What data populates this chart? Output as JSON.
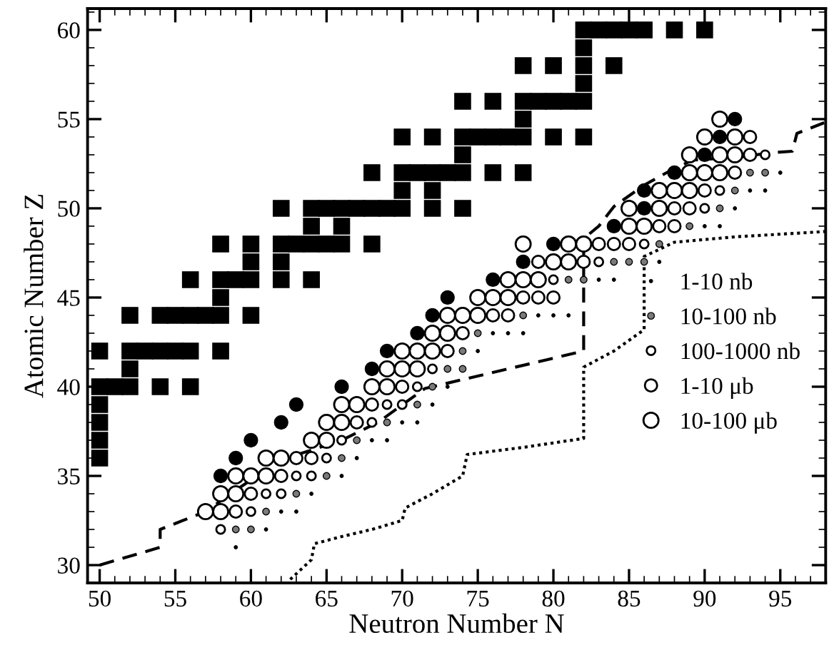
{
  "chart_data": {
    "type": "scatter",
    "xlabel": "Neutron Number N",
    "ylabel": "Atomic Number Z",
    "xlim": [
      49.2,
      98
    ],
    "ylim": [
      29,
      61.2
    ],
    "xticks": [
      50,
      55,
      60,
      65,
      70,
      75,
      80,
      85,
      90,
      95
    ],
    "yticks": [
      30,
      35,
      40,
      45,
      50,
      55,
      60
    ],
    "grid": false,
    "legend": "right",
    "series": [
      {
        "marker": "square",
        "color": "#000000",
        "x": [
          50,
          50,
          50,
          50,
          50,
          51,
          52,
          54,
          56,
          52,
          50,
          52,
          53,
          54,
          55,
          56,
          58,
          52,
          54,
          55,
          56,
          57,
          58,
          60,
          58,
          56,
          58,
          59,
          60,
          62,
          64,
          60,
          62,
          58,
          60,
          62,
          63,
          64,
          65,
          66,
          68,
          64,
          66,
          62,
          64,
          65,
          66,
          67,
          68,
          69,
          70,
          72,
          74,
          70,
          72,
          68,
          70,
          71,
          72,
          73,
          74,
          76,
          78,
          74,
          70,
          72,
          74,
          75,
          76,
          77,
          78,
          80,
          82,
          78,
          74,
          76,
          78,
          79,
          80,
          81,
          82,
          82,
          78,
          80,
          82,
          84,
          82,
          82,
          83,
          84,
          85,
          86,
          88,
          90
        ],
        "values": [
          36,
          37,
          38,
          39,
          40,
          40,
          40,
          40,
          40,
          41,
          42,
          42,
          42,
          42,
          42,
          42,
          42,
          44,
          44,
          44,
          44,
          44,
          44,
          44,
          45,
          46,
          46,
          46,
          46,
          46,
          46,
          47,
          47,
          48,
          48,
          48,
          48,
          48,
          48,
          48,
          48,
          49,
          49,
          50,
          50,
          50,
          50,
          50,
          50,
          50,
          50,
          50,
          50,
          51,
          51,
          52,
          52,
          52,
          52,
          52,
          52,
          52,
          52,
          53,
          54,
          54,
          54,
          54,
          54,
          54,
          54,
          54,
          54,
          55,
          56,
          56,
          56,
          56,
          56,
          56,
          56,
          57,
          58,
          58,
          58,
          58,
          59,
          60,
          60,
          60,
          60,
          60,
          60,
          60
        ]
      },
      {
        "marker": "circle",
        "color": "#000000",
        "x": [
          58,
          59,
          60,
          62,
          63,
          66,
          68,
          69,
          71,
          72,
          73,
          76,
          78,
          80,
          84,
          86,
          86,
          88,
          90,
          91,
          92
        ],
        "values": [
          35,
          36,
          37,
          38,
          39,
          40,
          41,
          42,
          43,
          44,
          45,
          46,
          47,
          48,
          49,
          50,
          51,
          52,
          53,
          54,
          55
        ]
      },
      {
        "marker": "circle",
        "name": "1-10 nb",
        "color": "#000000",
        "x": [
          59,
          61,
          62,
          63,
          64,
          66,
          67,
          68,
          69,
          70,
          71,
          72,
          73,
          75,
          76,
          77,
          78,
          79,
          80,
          81,
          83,
          84,
          87,
          90,
          91,
          92,
          93,
          94,
          95
        ],
        "values": [
          31,
          32,
          33,
          33,
          34,
          35,
          36,
          37,
          37,
          38,
          38,
          39,
          40,
          42,
          43,
          43,
          43,
          44,
          44,
          44,
          46,
          46,
          47,
          49,
          49,
          50,
          51,
          51,
          52
        ]
      },
      {
        "marker": "circle",
        "name": "10-100 nb",
        "color": "#7a7a7a",
        "x": [
          59,
          60,
          61,
          63,
          65,
          66,
          67,
          69,
          71,
          72,
          73,
          74,
          74,
          75,
          78,
          81,
          82,
          84,
          85,
          86,
          87,
          89,
          91,
          92,
          93,
          94
        ],
        "values": [
          32,
          32,
          33,
          34,
          35,
          36,
          37,
          38,
          39,
          40,
          41,
          41,
          42,
          43,
          44,
          46,
          46,
          47,
          47,
          47,
          48,
          49,
          50,
          51,
          52,
          52
        ]
      },
      {
        "marker": "circle",
        "name": "100-1000 nb",
        "color": "#ffffff",
        "x": [
          58,
          60,
          61,
          62,
          63,
          64,
          65,
          66,
          68,
          69,
          70,
          71,
          72,
          80,
          83,
          86,
          90,
          91,
          94
        ],
        "values": [
          32,
          33,
          34,
          34,
          35,
          35,
          36,
          37,
          38,
          39,
          39,
          40,
          41,
          46,
          47,
          48,
          50,
          51,
          53
        ]
      },
      {
        "marker": "circle",
        "name": "1-10 μb",
        "color": "#ffffff",
        "x": [
          59,
          60,
          62,
          63,
          64,
          67,
          68,
          70,
          73,
          74,
          76,
          77,
          78,
          79,
          80,
          79,
          82,
          83,
          84,
          85,
          87,
          88,
          88,
          89,
          90,
          92,
          93,
          93
        ],
        "values": [
          33,
          34,
          35,
          36,
          36,
          38,
          39,
          40,
          42,
          43,
          44,
          44,
          45,
          45,
          45,
          47,
          47,
          48,
          48,
          48,
          49,
          49,
          50,
          50,
          51,
          52,
          53,
          54
        ]
      },
      {
        "marker": "circle",
        "name": "10-100 μb",
        "color": "#ffffff",
        "x": [
          57,
          58,
          58,
          59,
          59,
          60,
          61,
          61,
          62,
          64,
          65,
          65,
          66,
          66,
          67,
          68,
          69,
          69,
          70,
          71,
          70,
          71,
          72,
          72,
          73,
          73,
          74,
          75,
          75,
          76,
          77,
          77,
          78,
          79,
          80,
          81,
          78,
          81,
          82,
          85,
          86,
          85,
          87,
          87,
          88,
          89,
          89,
          90,
          91,
          89,
          91,
          92,
          90,
          92,
          91
        ],
        "values": [
          33,
          33,
          34,
          34,
          35,
          35,
          35,
          36,
          36,
          37,
          37,
          38,
          38,
          39,
          39,
          40,
          40,
          41,
          41,
          41,
          42,
          42,
          42,
          43,
          43,
          44,
          44,
          44,
          45,
          45,
          45,
          46,
          46,
          46,
          47,
          47,
          48,
          48,
          48,
          49,
          49,
          50,
          50,
          51,
          51,
          51,
          52,
          52,
          52,
          53,
          53,
          53,
          54,
          54,
          55
        ]
      },
      {
        "type": "line",
        "marker": "none",
        "line_style": "dashed",
        "color": "#000000",
        "x": [
          50,
          54,
          54,
          57,
          59,
          62,
          66,
          68.4,
          71.5,
          76,
          82,
          82,
          83,
          84,
          86,
          87.7,
          89.2,
          92.6,
          94.2,
          95.8,
          96.1,
          97.9
        ],
        "values": [
          30,
          31,
          32,
          33,
          34.2,
          35.9,
          37,
          38,
          39.9,
          40.8,
          42,
          48.3,
          49,
          50.1,
          51.3,
          52.1,
          52.7,
          52.9,
          53.1,
          53.2,
          54.2,
          54.8
        ]
      },
      {
        "type": "line",
        "marker": "none",
        "line_style": "dotted",
        "color": "#000000",
        "x": [
          62.6,
          64,
          64.2,
          66,
          68,
          70,
          70.2,
          72,
          74,
          74.3,
          78,
          82,
          82,
          84,
          86,
          86,
          88,
          92,
          98
        ],
        "values": [
          29.2,
          30.3,
          31.2,
          31.6,
          32,
          32.5,
          33.2,
          34,
          35,
          36.2,
          36.6,
          37.1,
          41.1,
          42,
          43.2,
          47.3,
          48.1,
          48.4,
          48.7
        ]
      }
    ]
  }
}
